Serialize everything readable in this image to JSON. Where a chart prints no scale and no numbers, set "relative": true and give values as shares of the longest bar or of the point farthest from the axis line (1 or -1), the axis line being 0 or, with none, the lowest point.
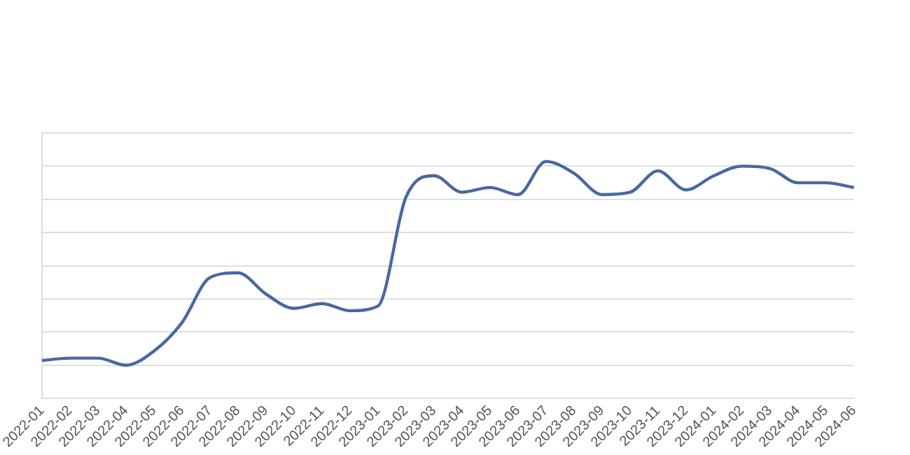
{
  "chart_data": {
    "type": "line",
    "relative": true,
    "grid": "y",
    "marker": "none",
    "line_style": "solid",
    "categories": [
      "2022-01",
      "2022-02",
      "2022-03",
      "2022-04",
      "2022-05",
      "2022-06",
      "2022-07",
      "2022-08",
      "2022-09",
      "2022-10",
      "2022-11",
      "2022-12",
      "2023-01",
      "2023-02",
      "2023-03",
      "2023-04",
      "2023-05",
      "2023-06",
      "2023-07",
      "2023-08",
      "2023-09",
      "2023-10",
      "2023-11",
      "2023-12",
      "2024-01",
      "2024-02",
      "2024-03",
      "2024-04",
      "2024-05",
      "2024-06"
    ],
    "series": [
      {
        "color": "#4a67a1",
        "values": [
          0.16,
          0.17,
          0.17,
          0.14,
          0.2,
          0.32,
          0.51,
          0.53,
          0.44,
          0.38,
          0.4,
          0.37,
          0.39,
          0.85,
          0.94,
          0.87,
          0.89,
          0.86,
          1,
          0.95,
          0.86,
          0.87,
          0.96,
          0.88,
          0.94,
          0.98,
          0.97,
          0.91,
          0.91,
          0.89
        ]
      }
    ]
  }
}
